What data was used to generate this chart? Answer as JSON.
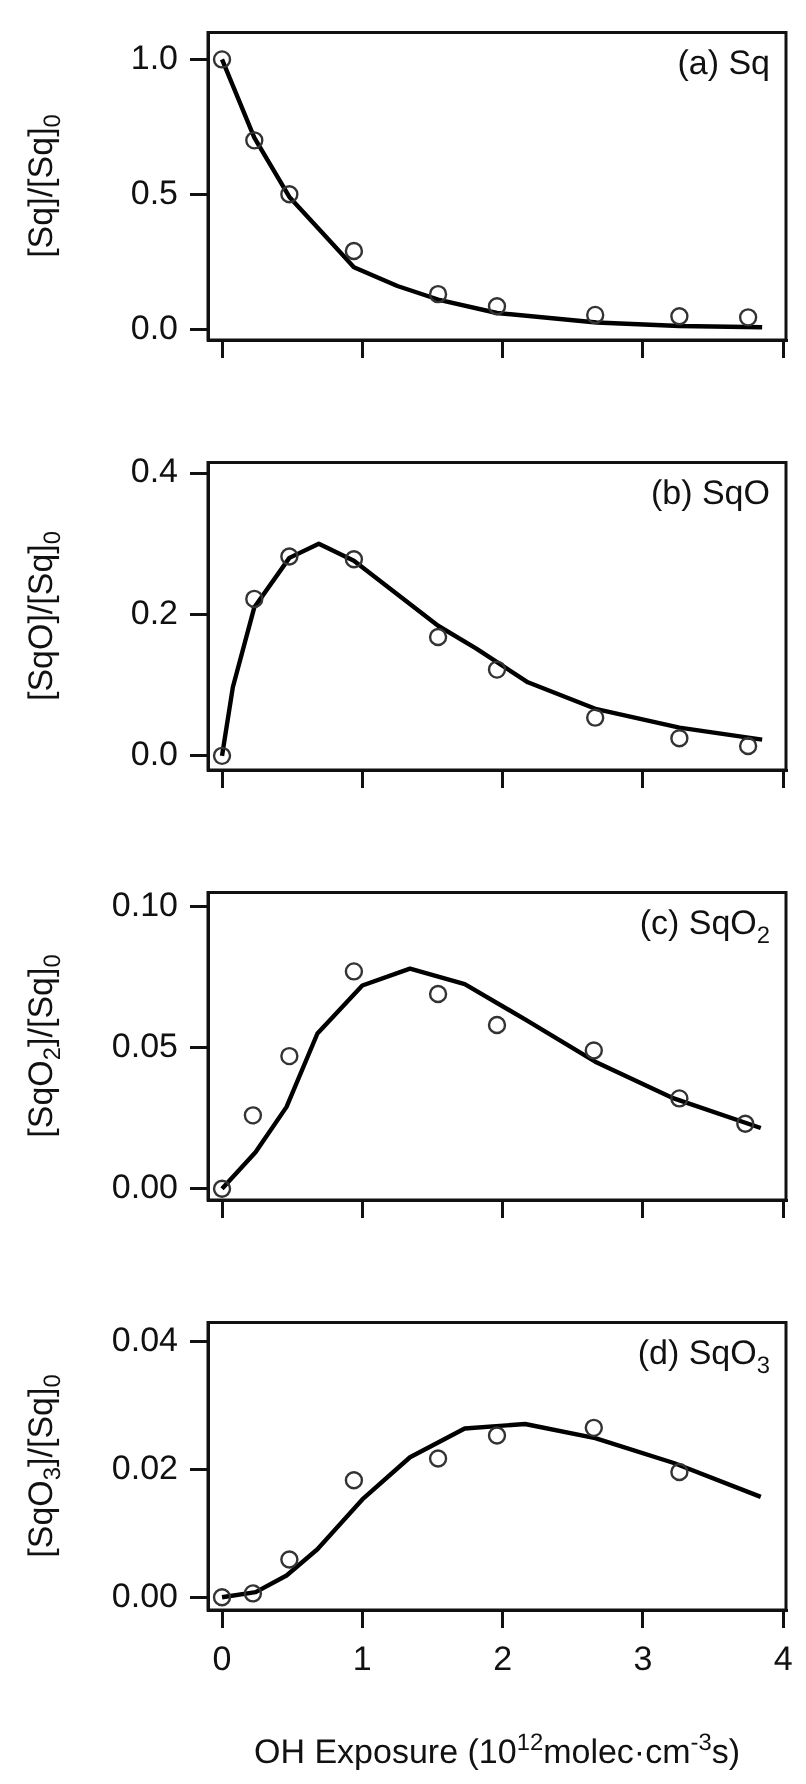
{
  "chart_data": [
    {
      "type": "scatter",
      "annotations": [
        "(a) Sq"
      ],
      "ylabel": "[Sq]/[Sq]$_{0}$",
      "xlim": [
        -0.1,
        4.02
      ],
      "xticks": [
        {
          "value": 0,
          "label": null
        },
        {
          "value": 1,
          "label": null
        },
        {
          "value": 2,
          "label": null
        },
        {
          "value": 3,
          "label": null
        },
        {
          "value": 4,
          "label": null
        }
      ],
      "ylim": [
        -0.04,
        1.1
      ],
      "yticks": [
        {
          "value": 0,
          "label": "0.0"
        },
        0.5,
        {
          "value": 1,
          "label": "1.0"
        }
      ],
      "tick_labels": "y",
      "grid": false,
      "legend": false,
      "series": [
        {
          "type": "scatter",
          "marker": "circle",
          "color": "#333333",
          "x": [
            0,
            0.23,
            0.48,
            0.94,
            1.54,
            1.96,
            2.66,
            3.26,
            3.75
          ],
          "values": [
            1.0,
            0.7,
            0.5,
            0.29,
            0.13,
            0.085,
            0.053,
            0.048,
            0.044
          ]
        },
        {
          "type": "line",
          "marker": "none",
          "color": "#000000",
          "x": [
            0,
            0.23,
            0.48,
            0.71,
            0.94,
            1.25,
            1.54,
            1.96,
            2.67,
            3.26,
            3.85
          ],
          "values": [
            1.0,
            0.71,
            0.49,
            0.36,
            0.23,
            0.16,
            0.11,
            0.06,
            0.025,
            0.012,
            0.007
          ]
        }
      ]
    },
    {
      "type": "scatter",
      "annotations": [
        "(b) SqO"
      ],
      "ylabel": "[SqO]/[Sq]$_{0}$",
      "xlim": [
        -0.1,
        4.02
      ],
      "xticks": [
        {
          "value": 0,
          "label": null
        },
        {
          "value": 1,
          "label": null
        },
        {
          "value": 2,
          "label": null
        },
        {
          "value": 3,
          "label": null
        },
        {
          "value": 4,
          "label": null
        }
      ],
      "ylim": [
        -0.02,
        0.415
      ],
      "yticks": [
        {
          "value": 0,
          "label": "0.0"
        },
        0.2,
        0.4
      ],
      "tick_labels": "y",
      "grid": false,
      "legend": false,
      "series": [
        {
          "type": "scatter",
          "marker": "circle",
          "color": "#333333",
          "x": [
            0,
            0.23,
            0.48,
            0.94,
            1.54,
            1.96,
            2.66,
            3.26,
            3.75
          ],
          "values": [
            0,
            0.222,
            0.282,
            0.278,
            0.168,
            0.122,
            0.054,
            0.025,
            0.014
          ]
        },
        {
          "type": "line",
          "marker": "none",
          "color": "#000000",
          "x": [
            0,
            0.077,
            0.23,
            0.48,
            0.69,
            0.94,
            1.54,
            1.81,
            2.18,
            2.67,
            3.26,
            3.85
          ],
          "values": [
            0,
            0.097,
            0.21,
            0.28,
            0.3,
            0.276,
            0.184,
            0.152,
            0.104,
            0.066,
            0.04,
            0.023
          ]
        }
      ]
    },
    {
      "type": "scatter",
      "annotations": [
        "(c) SqO$_{2}$"
      ],
      "ylabel": "[SqO$_{2}$]/[Sq]$_{0}$",
      "xlim": [
        -0.1,
        4.02
      ],
      "xticks": [
        {
          "value": 0,
          "label": null
        },
        {
          "value": 1,
          "label": null
        },
        {
          "value": 2,
          "label": null
        },
        {
          "value": 3,
          "label": null
        },
        {
          "value": 4,
          "label": null
        }
      ],
      "ylim": [
        -0.004,
        0.105
      ],
      "yticks": [
        {
          "value": 0,
          "label": "0.00"
        },
        0.05,
        {
          "value": 0.1,
          "label": "0.10"
        }
      ],
      "tick_labels": "y",
      "grid": false,
      "legend": false,
      "series": [
        {
          "type": "scatter",
          "marker": "circle",
          "color": "#333333",
          "x": [
            0,
            0.22,
            0.48,
            0.94,
            1.54,
            1.96,
            2.65,
            3.26,
            3.73
          ],
          "values": [
            0,
            0.026,
            0.047,
            0.077,
            0.069,
            0.058,
            0.049,
            0.032,
            0.023
          ]
        },
        {
          "type": "line",
          "marker": "none",
          "color": "#000000",
          "x": [
            0,
            0.24,
            0.46,
            0.68,
            1.0,
            1.34,
            1.73,
            2.16,
            2.66,
            3.22,
            3.84
          ],
          "values": [
            0,
            0.013,
            0.029,
            0.055,
            0.072,
            0.078,
            0.0725,
            0.06,
            0.045,
            0.032,
            0.0215
          ]
        }
      ]
    },
    {
      "type": "scatter",
      "annotations": [
        "(d) SqO$_{3}$"
      ],
      "ylabel": "[SqO$_{3}$]/[Sq]$_{0}$",
      "xlabel": "OH Exposure (10$^{12}$molec·cm$^{-3}$s)",
      "xlim": [
        -0.1,
        4.02
      ],
      "xticks": [
        0,
        1,
        2,
        3,
        4
      ],
      "ylim": [
        -0.002,
        0.043
      ],
      "yticks": [
        {
          "value": 0,
          "label": "0.00"
        },
        0.02,
        0.04
      ],
      "grid": false,
      "legend": false,
      "series": [
        {
          "type": "scatter",
          "marker": "circle",
          "color": "#333333",
          "x": [
            0,
            0.22,
            0.48,
            0.94,
            1.54,
            1.96,
            2.65,
            3.26
          ],
          "values": [
            0,
            0.0006,
            0.0059,
            0.0183,
            0.0217,
            0.0253,
            0.0265,
            0.0196
          ]
        },
        {
          "type": "line",
          "marker": "none",
          "color": "#000000",
          "x": [
            0,
            0.24,
            0.46,
            0.68,
            1.0,
            1.34,
            1.73,
            2.16,
            2.66,
            3.22,
            3.84
          ],
          "values": [
            0,
            0.0008,
            0.0034,
            0.0075,
            0.0153,
            0.0219,
            0.0264,
            0.0271,
            0.0249,
            0.021,
            0.0157
          ]
        }
      ]
    }
  ]
}
